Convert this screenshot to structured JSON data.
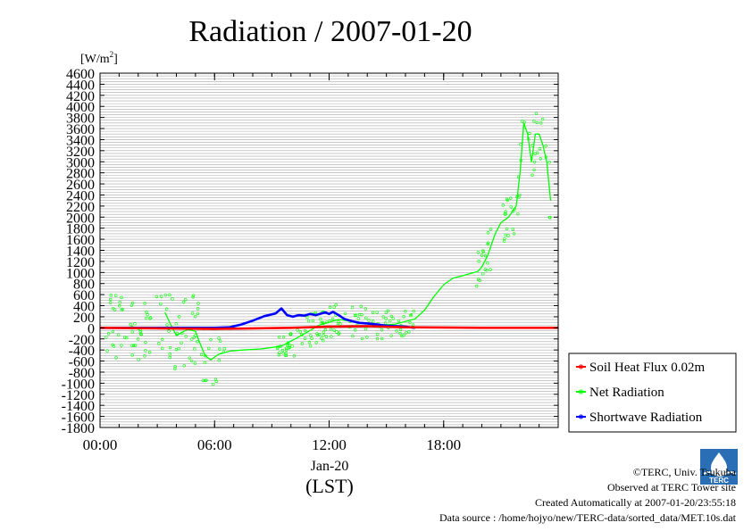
{
  "title": "Radiation / 2007-01-20",
  "unit_label": "[W/m",
  "unit_sup": "2",
  "unit_close": "]",
  "date_label": "Jan-20",
  "lst_label": "(LST)",
  "credits": {
    "copyright": "©TERC, Univ. Tsukuba",
    "observed": "Observed at TERC Tower site",
    "created": "Created Automatically at 2007-01-20/23:55:18",
    "source": "Data source : /home/hojyo/new/TERC-data/sorted_data/MET.10s.dat"
  },
  "logo_text": "TERC",
  "colors": {
    "soil": "#ff0000",
    "net": "#00ff00",
    "shortwave": "#0000ff"
  },
  "chart_data": {
    "type": "line",
    "title": "Radiation / 2007-01-20",
    "ylabel": "[W/m2]",
    "xlabel": "Jan-20 (LST)",
    "x_unit": "hours",
    "xlim": [
      0,
      24
    ],
    "ylim": [
      -1800,
      4600
    ],
    "yticks": [
      -1800,
      -1600,
      -1400,
      -1200,
      -1000,
      -800,
      -600,
      -400,
      -200,
      0,
      200,
      400,
      600,
      800,
      1000,
      1200,
      1400,
      1600,
      1800,
      2000,
      2200,
      2400,
      2600,
      2800,
      3000,
      3200,
      3400,
      3600,
      3800,
      4000,
      4200,
      4400,
      4600
    ],
    "ytick_labels": [
      "-1800",
      "-1600",
      "-1400",
      "-1200",
      "-1000",
      "-800",
      "-600",
      "-400",
      "-200",
      "0",
      "200",
      "400",
      "600",
      "800",
      "1000",
      "1200",
      "1400",
      "1600",
      "1800",
      "2000",
      "2200",
      "2400",
      "2600",
      "2800",
      "3000",
      "3200",
      "3400",
      "3600",
      "3800",
      "4000",
      "4200",
      "4400",
      "4600"
    ],
    "xticks": [
      0,
      6,
      12,
      18
    ],
    "xtick_labels": [
      "00:00",
      "06:00",
      "12:00",
      "18:00"
    ],
    "grid": true,
    "legend_position": "right",
    "series": [
      {
        "name": "Soil Heat Flux 0.02m",
        "color": "#ff0000",
        "x": [
          0,
          6,
          10,
          12,
          14,
          16,
          20,
          24
        ],
        "y": [
          0,
          -20,
          0,
          20,
          30,
          10,
          0,
          0
        ]
      },
      {
        "name": "Net Radiation",
        "color": "#00ff00",
        "x": [
          3.4,
          3.7,
          4.0,
          4.3,
          4.6,
          5.0,
          5.2,
          5.5,
          5.8,
          6.2,
          6.8,
          7.5,
          8.5,
          9.5,
          10.5,
          11.5,
          12.5,
          13.5,
          14.5,
          15.5,
          16.5,
          17.0,
          17.5,
          18.0,
          18.5,
          19.0,
          19.5,
          19.8,
          20.0,
          20.3,
          20.7,
          21.0,
          21.4,
          21.8,
          22.0,
          22.2,
          22.4,
          22.6,
          22.8,
          23.0,
          23.2,
          23.4,
          23.6
        ],
        "y": [
          280,
          60,
          -140,
          -80,
          -30,
          -60,
          -250,
          -500,
          -580,
          -480,
          -420,
          -400,
          -380,
          -330,
          -150,
          50,
          150,
          100,
          40,
          70,
          160,
          320,
          570,
          780,
          900,
          940,
          990,
          1020,
          1100,
          1300,
          1700,
          1900,
          2000,
          2200,
          2800,
          3700,
          3500,
          3000,
          3500,
          3500,
          3300,
          3000,
          2300
        ]
      },
      {
        "name": "Shortwave Radiation",
        "color": "#0000ff",
        "x": [
          0,
          3,
          6,
          6.8,
          7.4,
          8.0,
          8.6,
          9.2,
          9.5,
          9.8,
          10.1,
          10.4,
          10.7,
          11.0,
          11.3,
          11.6,
          11.8,
          12.0,
          12.2,
          12.5,
          12.8,
          13.2,
          13.6,
          14.0,
          14.5,
          15.0,
          15.5,
          16.0,
          16.5
        ],
        "y": [
          0,
          0,
          0,
          10,
          60,
          130,
          210,
          260,
          350,
          230,
          200,
          230,
          220,
          250,
          230,
          260,
          280,
          250,
          290,
          230,
          160,
          120,
          90,
          80,
          60,
          40,
          30,
          20,
          0
        ]
      }
    ]
  }
}
